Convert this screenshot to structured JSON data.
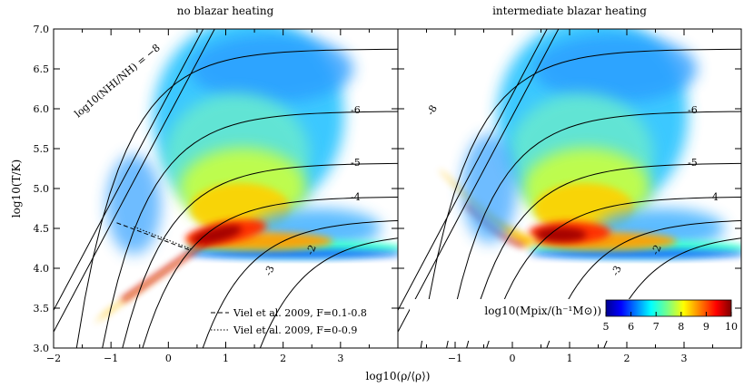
{
  "chart_data": [
    {
      "type": "heatmap",
      "title": "no blazar heating",
      "xlabel": "log10(ρ/⟨ρ⟩)",
      "ylabel": "log10(T/K)",
      "xlim": [
        -2,
        4
      ],
      "ylim": [
        3.0,
        7.0
      ],
      "x_ticks": [
        -2,
        -1,
        0,
        1,
        2,
        3
      ],
      "y_ticks": [
        3.0,
        3.5,
        4.0,
        4.5,
        5.0,
        5.5,
        6.0,
        6.5,
        7.0
      ],
      "contour_levels": [
        -8,
        -6,
        -5,
        -4,
        -3,
        -2
      ],
      "contour_labels": [
        "log10(NHI/NH) = −8",
        "-6",
        "-5",
        "-4",
        "-3",
        "-2"
      ],
      "overlay_lines": [
        {
          "name": "Viel et al. 2009, F=0.1-0.8",
          "style": "dashed",
          "points": [
            [
              -0.9,
              4.57
            ],
            [
              0.4,
              4.22
            ]
          ]
        },
        {
          "name": "Viel et al. 2009, F=0-0.9",
          "style": "dotted",
          "points": [
            [
              -0.6,
              4.52
            ],
            [
              0.4,
              4.24
            ]
          ]
        }
      ]
    },
    {
      "type": "heatmap",
      "title": "intermediate blazar heating",
      "xlabel": "log10(ρ/⟨ρ⟩)",
      "xlim": [
        -2,
        4
      ],
      "ylim": [
        3.0,
        7.0
      ],
      "x_ticks": [
        -1,
        0,
        1,
        2,
        3
      ],
      "contour_levels": [
        -8,
        -6,
        -5,
        -4,
        -3,
        -2
      ],
      "contour_labels": [
        "-8",
        "-6",
        "-5",
        "-4",
        "-3",
        "-2"
      ]
    }
  ],
  "colorbar": {
    "label": "log10(Mpix/(h⁻¹M⊙))",
    "ticks": [
      5,
      6,
      7,
      8,
      9,
      10
    ],
    "range": [
      5,
      10
    ],
    "colormap": "jet"
  },
  "colors": {
    "low": "#0000cc",
    "mid": "#c0ff40",
    "high": "#800000"
  }
}
